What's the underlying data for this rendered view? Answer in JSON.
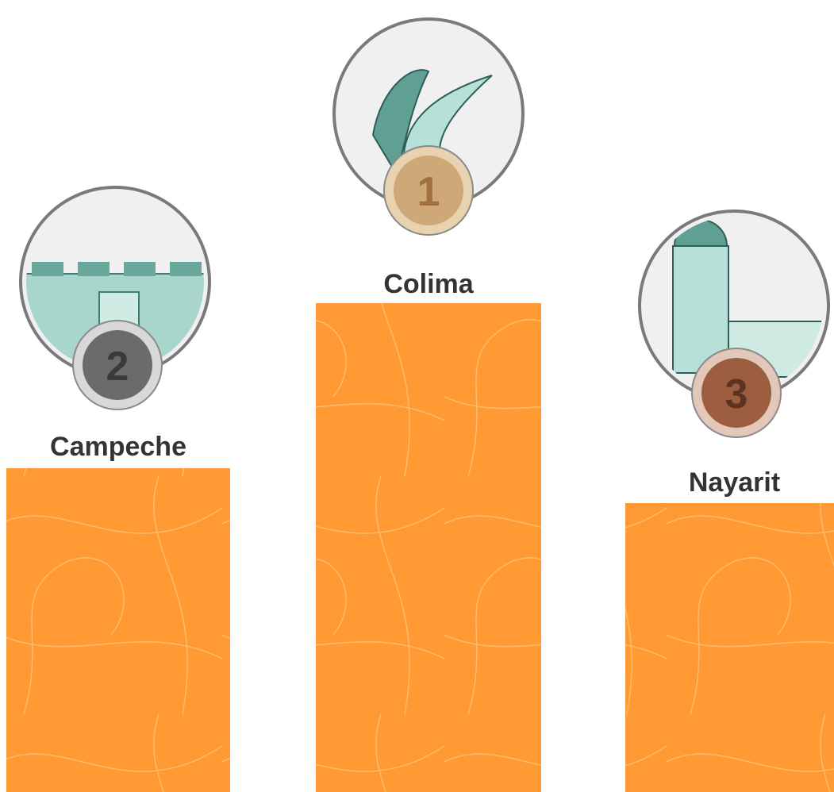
{
  "podium": [
    {
      "rank": 2,
      "name": "Campeche"
    },
    {
      "rank": 1,
      "name": "Colima"
    },
    {
      "rank": 3,
      "name": "Nayarit"
    }
  ]
}
